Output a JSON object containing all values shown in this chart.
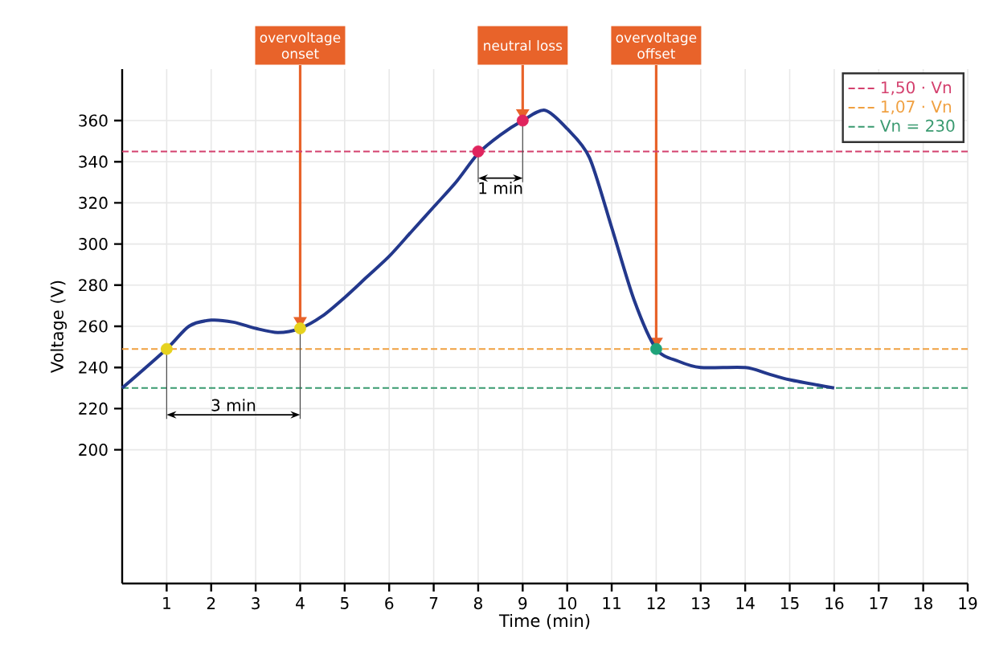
{
  "chart_data": {
    "type": "line",
    "xlabel": "Time (min)",
    "ylabel": "Voltage (V)",
    "xlim": [
      0,
      19
    ],
    "xticks": [
      1,
      2,
      3,
      4,
      5,
      6,
      7,
      8,
      9,
      10,
      11,
      12,
      13,
      14,
      15,
      16,
      17,
      18,
      19
    ],
    "ylim": [
      135,
      385
    ],
    "yticks": [
      200,
      220,
      240,
      260,
      280,
      300,
      320,
      340,
      360
    ],
    "grid": true,
    "legend": "top right",
    "series": [
      {
        "color": "#23388c",
        "x": [
          0,
          1,
          1.5,
          2,
          2.5,
          3,
          3.5,
          4,
          4.5,
          5,
          5.5,
          6,
          6.5,
          7,
          7.5,
          8,
          8.5,
          9,
          9.5,
          10,
          10.5,
          11,
          11.5,
          12,
          12.5,
          13,
          14,
          14.5,
          15,
          16
        ],
        "values": [
          230,
          249,
          260,
          263,
          262,
          259,
          257,
          259,
          265,
          274,
          284,
          294,
          306,
          318,
          330,
          344,
          353,
          360,
          365,
          356,
          342,
          308,
          273,
          249,
          243,
          240,
          240,
          237,
          234,
          230
        ]
      },
      {
        "type": "scatter",
        "x": [
          1,
          4,
          8,
          9,
          12
        ],
        "values": [
          249,
          259,
          345,
          360,
          249
        ],
        "colors": [
          "#e6d21e",
          "#e6d21e",
          "#e0245e",
          "#e0245e",
          "#1fa37a"
        ]
      }
    ],
    "ref_lines": [
      {
        "axis": "y",
        "value": 345,
        "label": "1,50 · Vn",
        "color": "#d4406e",
        "line_style": "dashed"
      },
      {
        "axis": "y",
        "value": 249,
        "label": "1,07 · Vn",
        "color": "#f0a040",
        "line_style": "dashed"
      },
      {
        "axis": "y",
        "value": 230,
        "label": "Vn = 230",
        "color": "#3a9a70",
        "line_style": "dashed"
      }
    ],
    "annotations": [
      {
        "text": "overvoltage onset",
        "x": 4,
        "y": 259
      },
      {
        "text": "neutral loss",
        "x": 9,
        "y": 360
      },
      {
        "text": "overvoltage offset",
        "x": 12,
        "y": 249
      },
      "3 min",
      "1 min"
    ]
  }
}
